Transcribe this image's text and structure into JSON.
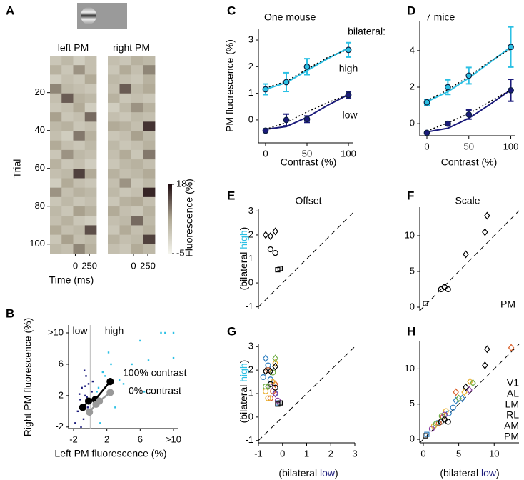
{
  "chart_data": [
    {
      "type": "heatmap",
      "panel": "A",
      "ylabel": "Trial",
      "xlabel": "Time (ms)",
      "colorbar_label": "Fluorescence (%)",
      "clim": [
        -5,
        18
      ],
      "cbar_ticks": [
        18,
        -5
      ],
      "xlim": [
        -450,
        375
      ],
      "xticks": [
        0,
        250
      ],
      "ylim": [
        0.5,
        105
      ],
      "yticks": [
        20,
        40,
        60,
        80,
        100
      ],
      "matrices": [
        {
          "name": "left PM",
          "values": [
            [
              2,
              4,
              1,
              3
            ],
            [
              5,
              2,
              8,
              3
            ],
            [
              1,
              3,
              2,
              6
            ],
            [
              9,
              4,
              3,
              2
            ],
            [
              3,
              12,
              5,
              4
            ],
            [
              2,
              3,
              6,
              1
            ],
            [
              7,
              2,
              3,
              11
            ],
            [
              4,
              5,
              2,
              3
            ],
            [
              3,
              1,
              10,
              5
            ],
            [
              6,
              3,
              2,
              4
            ],
            [
              2,
              8,
              4,
              3
            ],
            [
              5,
              2,
              3,
              1
            ],
            [
              3,
              4,
              14,
              6
            ],
            [
              1,
              6,
              3,
              2
            ],
            [
              8,
              3,
              5,
              4
            ],
            [
              2,
              4,
              2,
              3
            ],
            [
              4,
              2,
              7,
              5
            ],
            [
              3,
              5,
              2,
              1
            ],
            [
              6,
              3,
              4,
              13
            ],
            [
              2,
              7,
              3,
              4
            ],
            [
              4,
              3,
              9,
              5
            ]
          ]
        },
        {
          "name": "right PM",
          "values": [
            [
              3,
              2,
              5,
              4
            ],
            [
              2,
              6,
              3,
              9
            ],
            [
              4,
              3,
              2,
              5
            ],
            [
              3,
              12,
              4,
              6
            ],
            [
              5,
              2,
              3,
              2
            ],
            [
              1,
              4,
              8,
              5
            ],
            [
              3,
              2,
              4,
              3
            ],
            [
              6,
              5,
              3,
              15
            ],
            [
              2,
              3,
              7,
              4
            ],
            [
              4,
              2,
              3,
              5
            ],
            [
              3,
              6,
              2,
              10
            ],
            [
              2,
              4,
              5,
              3
            ],
            [
              5,
              3,
              4,
              6
            ],
            [
              3,
              8,
              2,
              4
            ],
            [
              4,
              2,
              3,
              16
            ],
            [
              2,
              5,
              6,
              3
            ],
            [
              6,
              3,
              2,
              5
            ],
            [
              3,
              4,
              11,
              4
            ],
            [
              2,
              6,
              3,
              5
            ],
            [
              5,
              3,
              4,
              14
            ],
            [
              3,
              2,
              6,
              4
            ]
          ]
        }
      ]
    },
    {
      "type": "scatter",
      "panel": "B",
      "xlabel": "Left PM fluorescence (%)",
      "ylabel": "Right PM fluorescence (%)",
      "xlim": [
        -2.6,
        10.6
      ],
      "ylim": [
        -2.2,
        11
      ],
      "xticks": [
        -2,
        2,
        6,
        {
          "value": 10,
          "label": ">10"
        }
      ],
      "yticks": [
        -2,
        2,
        6,
        {
          "value": 10,
          "label": ">10"
        }
      ],
      "vline": 0,
      "series": [
        {
          "name": "low",
          "color": "#1a1a7a",
          "marker": "dot",
          "x": [
            -1.5,
            -1.2,
            -1,
            -0.8,
            -0.6,
            -0.5,
            -0.3,
            -0.2,
            0,
            0.2,
            -1.8,
            -1.1,
            -0.7,
            -0.4,
            0.3,
            -0.9,
            -1.3,
            -0.1,
            0.5,
            -0.6
          ],
          "values": [
            0,
            1.5,
            3,
            -1,
            2,
            4.5,
            0.5,
            3.5,
            1,
            2.5,
            -1.5,
            -2,
            5.2,
            1.8,
            3.8,
            0.2,
            2.2,
            -0.5,
            1,
            3.2
          ]
        },
        {
          "name": "high",
          "color": "#2bc0e4",
          "marker": "dot",
          "x": [
            0.5,
            1,
            1.5,
            2,
            2.5,
            3,
            3.5,
            4,
            1.2,
            0.8,
            2.2,
            5,
            6.5,
            7,
            8.5,
            9,
            10,
            10,
            6,
            1.8
          ],
          "values": [
            1,
            3,
            5,
            2,
            6,
            0.5,
            4,
            3.5,
            -1.5,
            2.5,
            7.5,
            6,
            2.5,
            6.5,
            10,
            10,
            10,
            6.8,
            9,
            4.5
          ]
        },
        {
          "name": "100% contrast",
          "color": "#000000",
          "line": true,
          "x": [
            -0.9,
            -0.2,
            0.6,
            2.4
          ],
          "values": [
            0.5,
            1.3,
            1.5,
            3.8
          ]
        },
        {
          "name": "0% contrast",
          "color": "#999999",
          "line": true,
          "x": [
            -0.1,
            0.7,
            1.1,
            2.4
          ],
          "values": [
            -0.1,
            0.9,
            1.3,
            2.4
          ]
        }
      ]
    },
    {
      "type": "line",
      "panel": "C",
      "title": "One mouse",
      "note": "bilateral:",
      "xlabel": "Contrast (%)",
      "ylabel": "PM fluorescence (%)",
      "xlim": [
        -8.6,
        106
      ],
      "ylim": [
        -0.86,
        3.43
      ],
      "xticks": [
        0,
        50,
        100
      ],
      "yticks": [
        0,
        1,
        2,
        3
      ],
      "fit_x": [
        0,
        25,
        50,
        75,
        100
      ],
      "series": [
        {
          "name": "high",
          "color": "#2bc0e4",
          "x": [
            0,
            25,
            50,
            100
          ],
          "values": [
            1.15,
            1.42,
            2.0,
            2.63
          ],
          "errors": [
            0.2,
            0.35,
            0.3,
            0.27
          ],
          "fit": [
            1.15,
            1.4,
            1.85,
            2.3,
            2.7
          ],
          "fit_dotted": [
            1.2,
            1.45,
            1.9,
            2.35,
            2.65
          ]
        },
        {
          "name": "low",
          "color": "#1a1a7a",
          "x": [
            0,
            25,
            50,
            100
          ],
          "values": [
            -0.4,
            0,
            0.03,
            0.94
          ],
          "errors": [
            0.07,
            0.22,
            0.12,
            0.12
          ],
          "fit": [
            -0.35,
            -0.25,
            0.1,
            0.55,
            0.95
          ],
          "fit_dotted": [
            -0.35,
            -0.1,
            0.3,
            0.65,
            0.95
          ]
        }
      ]
    },
    {
      "type": "line",
      "panel": "D",
      "title": "7 mice",
      "xlabel": "Contrast (%)",
      "xlim": [
        -8.5,
        105.5
      ],
      "ylim": [
        -0.66,
        5.6
      ],
      "xticks": [
        0,
        50,
        100
      ],
      "yticks": [
        0,
        2,
        4
      ],
      "fit_x": [
        0,
        25,
        50,
        75,
        100
      ],
      "series": [
        {
          "color": "#2bc0e4",
          "x": [
            0,
            25,
            50,
            100
          ],
          "values": [
            1.17,
            2.0,
            2.63,
            4.2
          ],
          "errors": [
            0.15,
            0.4,
            0.45,
            1.1
          ],
          "fit": [
            1.2,
            1.75,
            2.5,
            3.35,
            4.2
          ],
          "fit_dotted": [
            1.25,
            1.85,
            2.6,
            3.4,
            4.1
          ]
        },
        {
          "color": "#1a1a7a",
          "x": [
            0,
            25,
            50,
            100
          ],
          "values": [
            -0.5,
            0,
            0.5,
            1.83
          ],
          "errors": [
            0.05,
            0.1,
            0.25,
            0.6
          ],
          "fit": [
            -0.45,
            -0.25,
            0.3,
            1.05,
            1.85
          ],
          "fit_dotted": [
            -0.4,
            0.05,
            0.55,
            1.2,
            1.85
          ]
        }
      ]
    },
    {
      "type": "scatter",
      "panel": "E",
      "title": "Offset",
      "ylabel": [
        {
          "text": "(bilateral "
        },
        {
          "text": "high",
          "color": "#2bc0e4"
        },
        {
          "text": ")"
        }
      ],
      "xlim": [
        -1,
        3
      ],
      "ylim": [
        -1.1,
        3.1
      ],
      "yticks": [
        -1,
        0,
        1,
        2,
        3
      ],
      "identity_line": true,
      "hollow": true,
      "series": [
        {
          "color": "#000000",
          "x": [
            -0.7,
            -0.5,
            -0.3,
            -0.5,
            -0.3,
            -0.2,
            -0.1
          ],
          "values": [
            2.0,
            1.95,
            2.15,
            1.4,
            1.25,
            0.55,
            0.6
          ],
          "markers": [
            "diamond",
            "diamond",
            "diamond",
            "circle",
            "circle",
            "square",
            "square"
          ]
        }
      ]
    },
    {
      "type": "scatter",
      "panel": "F",
      "title": "Scale",
      "note": "PM",
      "xlim": [
        -0.5,
        13.5
      ],
      "ylim": [
        -0.5,
        14
      ],
      "yticks": [
        0,
        5,
        10
      ],
      "identity_line": true,
      "hollow": true,
      "series": [
        {
          "color": "#000000",
          "x": [
            9,
            8.7,
            6,
            2.5,
            3,
            3.5,
            0.3
          ],
          "values": [
            12.8,
            10.5,
            7.4,
            2.5,
            2.8,
            2.5,
            0.5
          ],
          "markers": [
            "diamond",
            "diamond",
            "diamond",
            "circle",
            "circle",
            "circle",
            "square"
          ]
        }
      ]
    },
    {
      "type": "scatter",
      "panel": "G",
      "xlabel": [
        {
          "text": "(bilateral "
        },
        {
          "text": "low",
          "color": "#1a1a7a"
        },
        {
          "text": ")"
        }
      ],
      "ylabel": [
        {
          "text": "(bilateral "
        },
        {
          "text": "high",
          "color": "#2bc0e4"
        },
        {
          "text": ")"
        }
      ],
      "xlim": [
        -1,
        3
      ],
      "ylim": [
        -1.1,
        3.1
      ],
      "xticks": [
        -1,
        0,
        1,
        2,
        3
      ],
      "yticks": [
        -1,
        0,
        1,
        2,
        3
      ],
      "identity_line": true,
      "hollow": true,
      "series": [
        {
          "color": "#2f7fc1",
          "x": [
            -0.7,
            -0.6,
            -0.5,
            -0.3,
            -0.2,
            -0.8
          ],
          "values": [
            2.5,
            2.2,
            1.6,
            1.0,
            0.6,
            1.7
          ],
          "markers": [
            "diamond",
            "circle",
            "circle",
            "circle",
            "square",
            "circle"
          ]
        },
        {
          "color": "#d9602b",
          "x": [
            -0.6,
            -0.4,
            -0.5,
            -0.3
          ],
          "values": [
            2.0,
            1.1,
            0.8,
            1.4
          ],
          "markers": [
            "circle",
            "circle",
            "circle",
            "diamond"
          ]
        },
        {
          "color": "#e9b02f",
          "x": [
            -0.7,
            -0.6,
            -0.4,
            -0.3
          ],
          "values": [
            1.1,
            0.8,
            1.5,
            2.3
          ],
          "markers": [
            "circle",
            "circle",
            "diamond",
            "diamond"
          ]
        },
        {
          "color": "#8b3ea0",
          "x": [
            -0.5,
            -0.3,
            -0.2
          ],
          "values": [
            1.3,
            1.0,
            0.7
          ],
          "markers": [
            "circle",
            "diamond",
            "circle"
          ]
        },
        {
          "color": "#70ad47",
          "x": [
            -0.3,
            -0.6,
            -0.4,
            -0.7
          ],
          "values": [
            2.5,
            1.3,
            1.9,
            1.3
          ],
          "markers": [
            "diamond",
            "diamond",
            "circle",
            "circle"
          ]
        },
        {
          "color": "#000000",
          "x": [
            -0.7,
            -0.5,
            -0.3,
            -0.5,
            -0.3,
            -0.2,
            -0.1
          ],
          "values": [
            1.95,
            1.95,
            2.15,
            1.4,
            1.25,
            0.55,
            0.6
          ],
          "markers": [
            "diamond",
            "diamond",
            "diamond",
            "circle",
            "circle",
            "square",
            "square"
          ]
        }
      ]
    },
    {
      "type": "scatter",
      "panel": "H",
      "xlabel": [
        {
          "text": "(bilateral "
        },
        {
          "text": "low",
          "color": "#1a1a7a"
        },
        {
          "text": ")"
        }
      ],
      "xlim": [
        -0.5,
        13.5
      ],
      "ylim": [
        -0.5,
        14
      ],
      "xticks": [
        0,
        5,
        10
      ],
      "yticks": [
        0,
        5,
        10
      ],
      "identity_line": true,
      "hollow": true,
      "legend": "right",
      "series": [
        {
          "name": "V1",
          "color": "#2f7fc1",
          "x": [
            4.6,
            4.2,
            3.6,
            2,
            0.5,
            5.5
          ],
          "values": [
            5.5,
            4.5,
            3.7,
            2.3,
            0.7,
            5.8
          ],
          "markers": [
            "diamond",
            "circle",
            "circle",
            "circle",
            "square",
            "diamond"
          ]
        },
        {
          "name": "AL",
          "color": "#d9602b",
          "x": [
            12.4,
            4.6,
            2.8,
            2.2
          ],
          "values": [
            13,
            6.7,
            3.2,
            2.3
          ],
          "markers": [
            "diamond",
            "diamond",
            "circle",
            "circle"
          ]
        },
        {
          "name": "LM",
          "color": "#e9b02f",
          "x": [
            5.8,
            3.2,
            1.5,
            6.6
          ],
          "values": [
            6.7,
            4,
            1.9,
            8.2
          ],
          "markers": [
            "diamond",
            "circle",
            "circle",
            "diamond"
          ]
        },
        {
          "name": "RL",
          "color": "#8b3ea0",
          "x": [
            6.5,
            3,
            1.2
          ],
          "values": [
            7,
            3.5,
            1.5
          ],
          "markers": [
            "diamond",
            "circle",
            "circle"
          ]
        },
        {
          "name": "AM",
          "color": "#70ad47",
          "x": [
            7,
            5,
            2.6,
            1.8
          ],
          "values": [
            8,
            5.8,
            3.3,
            2.2
          ],
          "markers": [
            "diamond",
            "diamond",
            "circle",
            "circle"
          ]
        },
        {
          "name": "PM",
          "color": "#000000",
          "x": [
            9,
            8.7,
            6,
            2.5,
            3,
            3.5,
            0.3
          ],
          "values": [
            12.8,
            10.5,
            7.4,
            2.5,
            2.8,
            2.5,
            0.5
          ],
          "markers": [
            "diamond",
            "diamond",
            "diamond",
            "circle",
            "circle",
            "circle",
            "square"
          ]
        }
      ]
    }
  ]
}
